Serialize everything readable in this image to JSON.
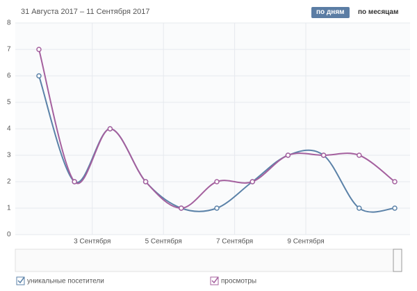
{
  "header": {
    "range": "31 Августа 2017 – 11 Сентября 2017",
    "buttons": [
      "по дням",
      "по месяцам"
    ]
  },
  "chart_data": {
    "type": "line",
    "categories": [
      null,
      null,
      "3 Сентября",
      null,
      "5 Сентября",
      null,
      "7 Сентября",
      null,
      "9 Сентября",
      null,
      null
    ],
    "series": [
      {
        "name": "уникальные посетители",
        "color": "#5b82a8",
        "values": [
          6,
          2,
          4,
          2,
          1,
          1,
          2,
          3,
          3,
          1,
          1
        ]
      },
      {
        "name": "просмотры",
        "color": "#a4609e",
        "values": [
          7,
          2,
          4,
          2,
          1,
          2,
          2,
          3,
          3,
          3,
          2
        ]
      }
    ],
    "ylim": [
      0,
      8
    ],
    "yticks": [
      0,
      1,
      2,
      3,
      4,
      5,
      6,
      7,
      8
    ],
    "grid": true
  }
}
